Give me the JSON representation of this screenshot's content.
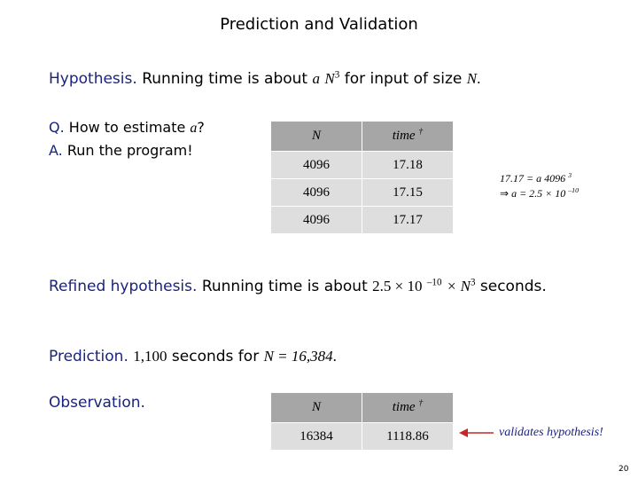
{
  "slide": {
    "title": "Prediction and Validation",
    "page_number": "20"
  },
  "hypothesis": {
    "label": "Hypothesis.",
    "text_before": "Running time is about",
    "expr_a": "a",
    "expr_N": "N",
    "expr_exp": "3",
    "text_after": "for input of size",
    "expr_N2": "N",
    "period": "."
  },
  "qa": {
    "q_label": "Q.",
    "q_text": "How to estimate",
    "q_var": "a",
    "q_mark": "?",
    "a_label": "A.",
    "a_text": "Run the program!"
  },
  "table1": {
    "headers": [
      "N",
      "time"
    ],
    "header_dagger": "†",
    "rows": [
      [
        "4096",
        "17.18"
      ],
      [
        "4096",
        "17.15"
      ],
      [
        "4096",
        "17.17"
      ]
    ]
  },
  "calc": {
    "line1_text": "17.17 = a 4096",
    "line1_exp": "3",
    "line2_arrow": "⇒",
    "line2_text": "a = 2.5 × 10",
    "line2_exp": "–10"
  },
  "refined": {
    "label": "Refined hypothesis.",
    "text_before": "Running time is about",
    "expr_base": "2.5 × 10",
    "expr_exp": "–10",
    "expr_times_N": "× N",
    "expr_N_exp": "3",
    "text_after": "seconds."
  },
  "prediction": {
    "label": "Prediction.",
    "value": "1,100",
    "text_mid": "seconds for",
    "expr": "N = 16,384",
    "period": "."
  },
  "observation": {
    "label": "Observation."
  },
  "table2": {
    "headers": [
      "N",
      "time"
    ],
    "header_dagger": "†",
    "rows": [
      [
        "16384",
        "1118.86"
      ]
    ]
  },
  "validation_note": {
    "text": "validates hypothesis!",
    "arrow_color": "#c62828"
  }
}
